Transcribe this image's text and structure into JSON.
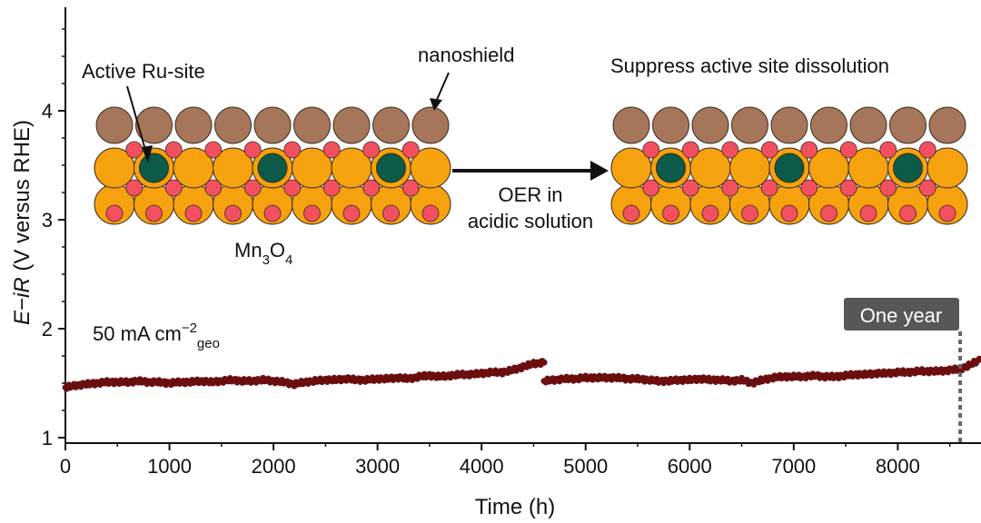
{
  "chart_data": {
    "type": "scatter",
    "title": "",
    "xlabel": "Time (h)",
    "ylabel_parts": [
      "E",
      "−",
      "iR",
      " (V versus RHE)"
    ],
    "xlim": [
      0,
      8800
    ],
    "ylim": [
      0.95,
      4.95
    ],
    "xticks": [
      0,
      1000,
      2000,
      3000,
      4000,
      5000,
      6000,
      7000,
      8000
    ],
    "yticks": [
      1,
      2,
      3,
      4
    ],
    "grid": false,
    "marker_color": "#6b0e10",
    "series": [
      {
        "name": "segment-1",
        "x": [
          0,
          100,
          200,
          300,
          400,
          500,
          600,
          700,
          800,
          900,
          1000,
          1100,
          1200,
          1300,
          1400,
          1500,
          1600,
          1700,
          1800,
          1900,
          2000,
          2100,
          2200,
          2300,
          2400,
          2500,
          2600,
          2700,
          2800,
          2900,
          3000,
          3100,
          3200,
          3300,
          3400,
          3500,
          3600,
          3700,
          3800,
          3900,
          4000,
          4100,
          4200,
          4300,
          4400,
          4500,
          4600
        ],
        "y": [
          1.46,
          1.48,
          1.49,
          1.5,
          1.51,
          1.51,
          1.51,
          1.52,
          1.51,
          1.51,
          1.5,
          1.51,
          1.51,
          1.52,
          1.51,
          1.52,
          1.53,
          1.52,
          1.52,
          1.53,
          1.52,
          1.51,
          1.49,
          1.51,
          1.52,
          1.53,
          1.53,
          1.54,
          1.53,
          1.53,
          1.54,
          1.54,
          1.55,
          1.54,
          1.56,
          1.57,
          1.56,
          1.57,
          1.58,
          1.58,
          1.59,
          1.6,
          1.6,
          1.62,
          1.65,
          1.68,
          1.69
        ]
      },
      {
        "name": "segment-2",
        "x": [
          4600,
          4700,
          4800,
          4900,
          5000,
          5100,
          5200,
          5300,
          5400,
          5500,
          5600,
          5700,
          5800,
          5900,
          6000,
          6100,
          6200,
          6300,
          6400,
          6500,
          6600,
          6700,
          6800,
          6900,
          7000,
          7100,
          7200,
          7300,
          7400,
          7500,
          7600,
          7700,
          7800,
          7900,
          8000,
          8100,
          8200,
          8300,
          8400,
          8500,
          8600,
          8700,
          8800
        ],
        "y": [
          1.52,
          1.53,
          1.54,
          1.54,
          1.55,
          1.55,
          1.55,
          1.55,
          1.54,
          1.54,
          1.53,
          1.52,
          1.52,
          1.53,
          1.53,
          1.54,
          1.53,
          1.53,
          1.52,
          1.53,
          1.5,
          1.53,
          1.55,
          1.56,
          1.56,
          1.56,
          1.57,
          1.56,
          1.56,
          1.57,
          1.58,
          1.58,
          1.59,
          1.59,
          1.6,
          1.6,
          1.61,
          1.61,
          1.61,
          1.62,
          1.63,
          1.67,
          1.72
        ]
      }
    ],
    "annotations": {
      "current_density": "50 mA cm",
      "current_density_sup": "−2",
      "current_density_sub": "geo",
      "one_year_label": "One year",
      "one_year_x": 8600,
      "active_ru_site": "Active Ru-site",
      "nanoshield": "nanoshield",
      "substrate": "Mn",
      "substrate_sub1": "3",
      "substrate_mid": "O",
      "substrate_sub2": "4",
      "arrow_label_line1": "OER in",
      "arrow_label_line2": "acidic solution",
      "right_title": "Suppress active site dissolution"
    }
  },
  "colors": {
    "mn_atom": "#f6a20f",
    "oxygen_atom": "#f25060",
    "ru_atom": "#0c5a48",
    "shield_atom": "#a6765a",
    "outline": "#3a2a1a",
    "badge": "#575757"
  }
}
